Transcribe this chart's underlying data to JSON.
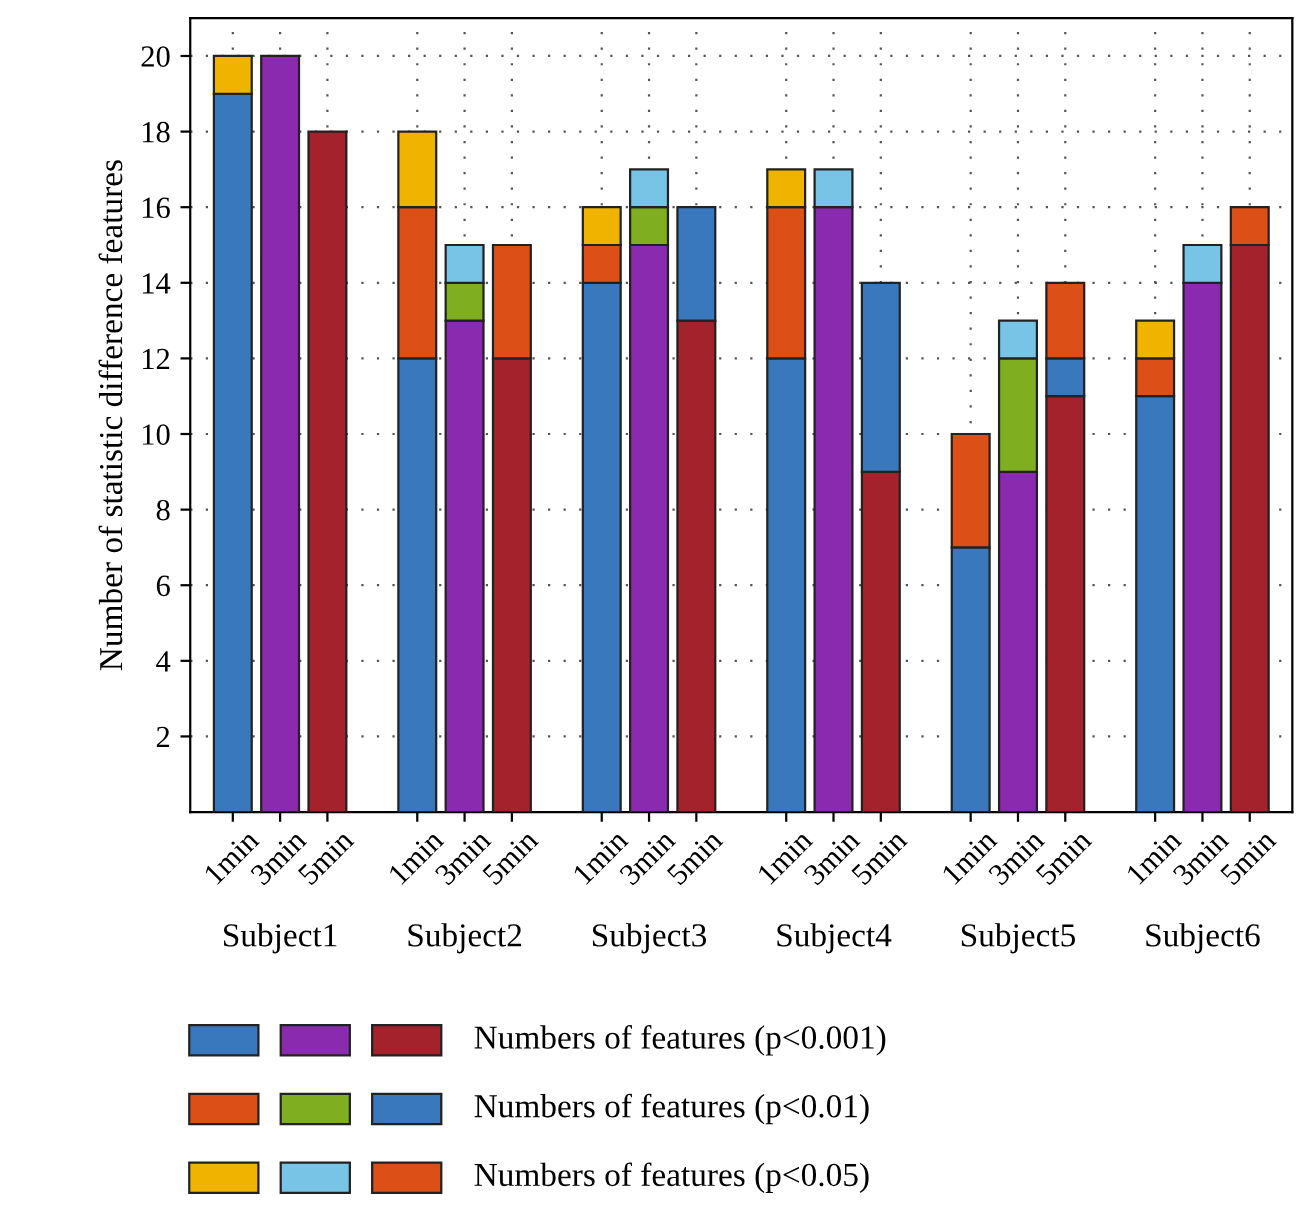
{
  "chart_data": {
    "type": "bar",
    "stacked": true,
    "ylabel": "Number of statistic difference features",
    "categories": [
      "1min",
      "3min",
      "5min",
      "1min",
      "3min",
      "5min",
      "1min",
      "3min",
      "5min",
      "1min",
      "3min",
      "5min",
      "1min",
      "3min",
      "5min",
      "1min",
      "3min",
      "5min"
    ],
    "annotations": [
      "Subject1",
      "Subject2",
      "Subject3",
      "Subject4",
      "Subject5",
      "Subject6"
    ],
    "series": [
      {
        "name": "Numbers of features (p<0.001)",
        "colors": [
          "#3a78bd",
          "#8a2aae",
          "#a3222c",
          "#3a78bd",
          "#8a2aae",
          "#a3222c",
          "#3a78bd",
          "#8a2aae",
          "#a3222c",
          "#3a78bd",
          "#8a2aae",
          "#a3222c",
          "#3a78bd",
          "#8a2aae",
          "#a3222c",
          "#3a78bd",
          "#8a2aae",
          "#a3222c"
        ],
        "values": [
          19,
          20,
          18,
          12,
          13,
          12,
          14,
          15,
          13,
          12,
          16,
          9,
          7,
          9,
          11,
          11,
          14,
          15
        ]
      },
      {
        "name": "Numbers of features (p<0.01)",
        "colors": [
          "#dc4f16",
          "#7fae21",
          "#3a78bd",
          "#dc4f16",
          "#7fae21",
          "#3a78bd",
          "#dc4f16",
          "#7fae21",
          "#3a78bd",
          "#dc4f16",
          "#7fae21",
          "#3a78bd",
          "#dc4f16",
          "#7fae21",
          "#3a78bd",
          "#dc4f16",
          "#7fae21",
          "#3a78bd"
        ],
        "values": [
          0,
          0,
          0,
          4,
          1,
          0,
          1,
          1,
          3,
          4,
          0,
          5,
          3,
          3,
          1,
          1,
          0,
          0
        ]
      },
      {
        "name": "Numbers of features (p<0.05)",
        "colors": [
          "#f0b400",
          "#78c4e6",
          "#dc4f16",
          "#f0b400",
          "#78c4e6",
          "#dc4f16",
          "#f0b400",
          "#78c4e6",
          "#dc4f16",
          "#f0b400",
          "#78c4e6",
          "#dc4f16",
          "#f0b400",
          "#78c4e6",
          "#dc4f16",
          "#f0b400",
          "#78c4e6",
          "#dc4f16"
        ],
        "values": [
          1,
          0,
          0,
          2,
          1,
          3,
          1,
          1,
          0,
          1,
          1,
          0,
          0,
          1,
          2,
          1,
          1,
          1
        ]
      }
    ],
    "ylim": [
      0,
      21
    ],
    "yticks": [
      2,
      4,
      6,
      8,
      10,
      12,
      14,
      16,
      18,
      20
    ],
    "grid": true,
    "legend": "bottom"
  }
}
